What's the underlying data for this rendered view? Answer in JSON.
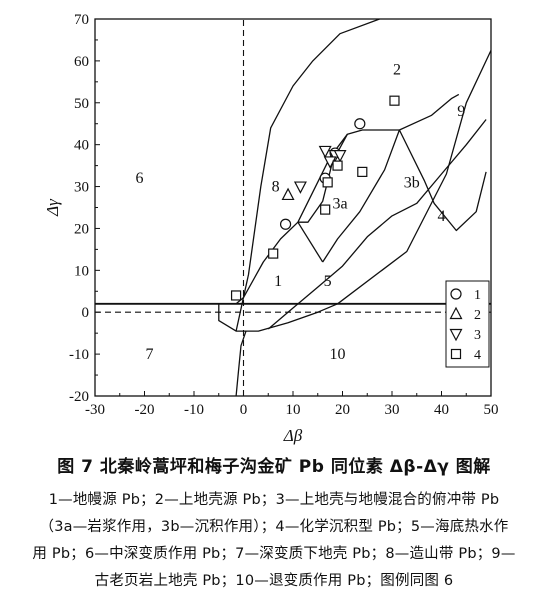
{
  "figure": {
    "caption": "图 7   北秦岭蒿坪和梅子沟金矿 Pb 同位素 Δβ-Δγ 图解",
    "note_lines": [
      "1—地幔源 Pb；2—上地壳源 Pb；3—上地壳与地幔混合的俯冲带 Pb",
      "（3a—岩浆作用，3b—沉积作用）；4—化学沉积型 Pb；5—海底热水作",
      "用 Pb；6—中深变质作用 Pb；7—深变质下地壳 Pb；8—造山带 Pb；9—",
      "古老页岩上地壳 Pb；10—退变质作用 Pb；图例同图 6"
    ]
  },
  "chart_data": {
    "type": "scatter",
    "xlabel": "Δβ",
    "ylabel": "Δγ",
    "xlim": [
      -30,
      50
    ],
    "ylim": [
      -20,
      70
    ],
    "xticks": [
      -30,
      -20,
      -10,
      0,
      10,
      20,
      30,
      40,
      50
    ],
    "yticks": [
      -20,
      -10,
      0,
      10,
      20,
      30,
      40,
      50,
      60,
      70
    ],
    "grid": false,
    "legend_position": "lower-right",
    "region_labels": [
      {
        "text": "1",
        "x": 7,
        "y": 7.5
      },
      {
        "text": "2",
        "x": 31,
        "y": 58
      },
      {
        "text": "3a",
        "x": 19.5,
        "y": 26
      },
      {
        "text": "3b",
        "x": 34,
        "y": 31
      },
      {
        "text": "4",
        "x": 40,
        "y": 23
      },
      {
        "text": "5",
        "x": 17,
        "y": 7.5
      },
      {
        "text": "6",
        "x": -21,
        "y": 32
      },
      {
        "text": "7",
        "x": -19,
        "y": -10
      },
      {
        "text": "8",
        "x": 6.5,
        "y": 30
      },
      {
        "text": "9",
        "x": 44,
        "y": 48
      },
      {
        "text": "10",
        "x": 19,
        "y": -10
      }
    ],
    "series": [
      {
        "name": "1",
        "marker": "circle",
        "x": [
          8.5,
          16.5,
          23.5,
          18.5
        ],
        "y": [
          21,
          32,
          45,
          38
        ]
      },
      {
        "name": "2",
        "marker": "triangle-up",
        "x": [
          9
        ],
        "y": [
          28
        ]
      },
      {
        "name": "3",
        "marker": "triangle-down",
        "x": [
          11.5,
          16.5,
          18.5,
          19.5,
          17.5
        ],
        "y": [
          30,
          38.5,
          37.5,
          37.5,
          36
        ]
      },
      {
        "name": "4",
        "marker": "square",
        "x": [
          -1.5,
          6,
          16.5,
          17,
          19,
          24,
          30.5
        ],
        "y": [
          4,
          14,
          24.5,
          31,
          35,
          33.5,
          50.5
        ]
      }
    ]
  }
}
